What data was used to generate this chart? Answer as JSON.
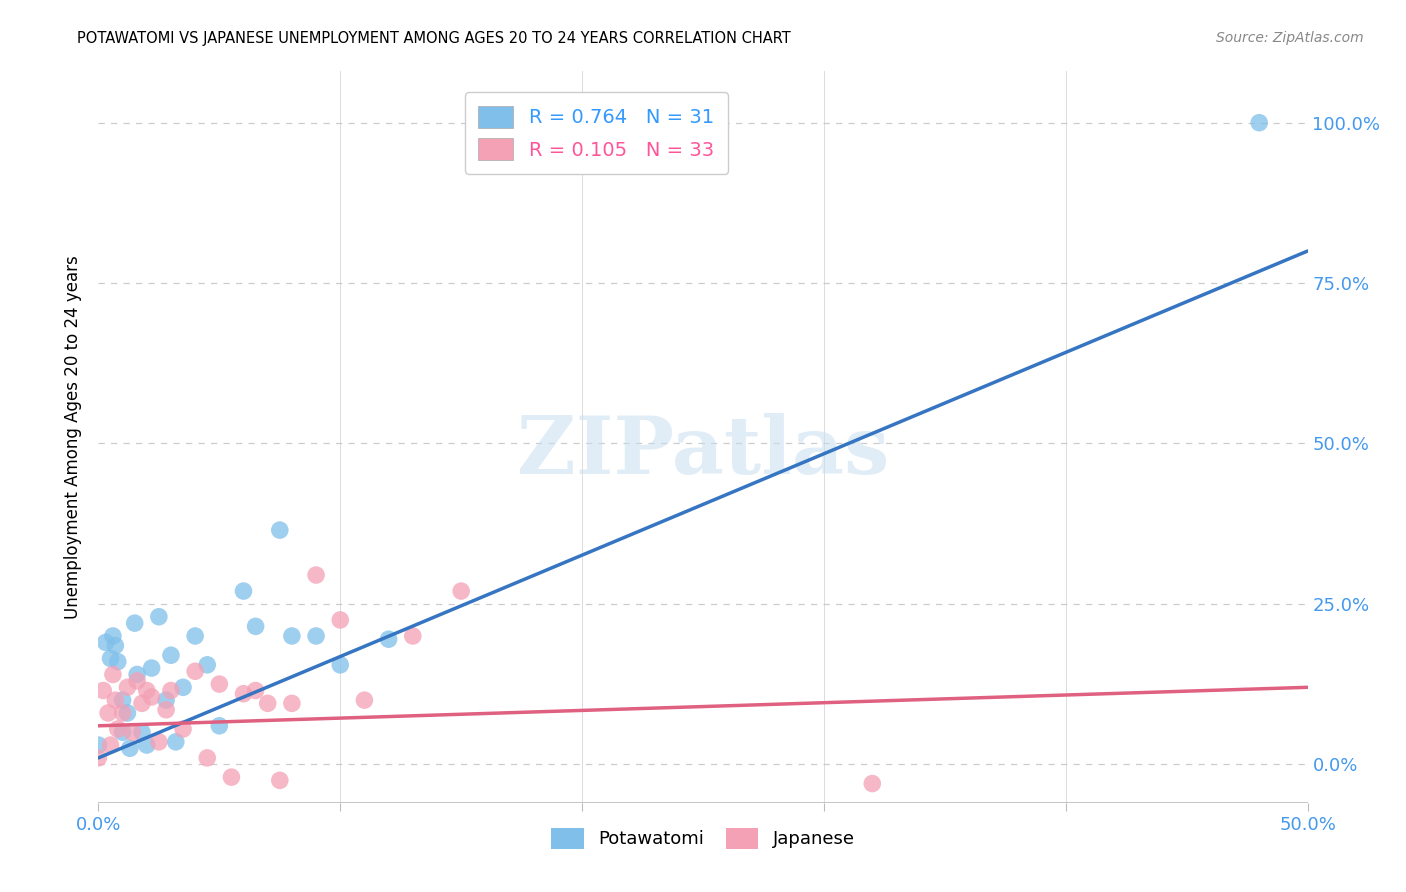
{
  "title": "POTAWATOMI VS JAPANESE UNEMPLOYMENT AMONG AGES 20 TO 24 YEARS CORRELATION CHART",
  "source": "Source: ZipAtlas.com",
  "ylabel": "Unemployment Among Ages 20 to 24 years",
  "xlim": [
    0.0,
    0.5
  ],
  "ylim": [
    -0.06,
    1.08
  ],
  "xticks": [
    0.0,
    0.1,
    0.2,
    0.3,
    0.4,
    0.5
  ],
  "xtick_labels_show": [
    "0.0%",
    "",
    "",
    "",
    "",
    "50.0%"
  ],
  "yticks_right": [
    0.0,
    0.25,
    0.5,
    0.75,
    1.0
  ],
  "ytick_labels_right": [
    "0.0%",
    "25.0%",
    "50.0%",
    "75.0%",
    "100.0%"
  ],
  "blue_color": "#7fbfea",
  "pink_color": "#f4a0b5",
  "blue_line_color": "#3575c2",
  "pink_line_color": "#e06080",
  "legend_blue_label": "R = 0.764   N = 31",
  "legend_pink_label": "R = 0.105   N = 33",
  "watermark_text": "ZIPatlas",
  "potawatomi_x": [
    0.0,
    0.003,
    0.005,
    0.006,
    0.007,
    0.008,
    0.01,
    0.01,
    0.012,
    0.013,
    0.015,
    0.016,
    0.018,
    0.02,
    0.022,
    0.025,
    0.028,
    0.03,
    0.032,
    0.035,
    0.04,
    0.045,
    0.05,
    0.06,
    0.065,
    0.075,
    0.08,
    0.09,
    0.1,
    0.12,
    0.48
  ],
  "potawatomi_y": [
    0.03,
    0.19,
    0.165,
    0.2,
    0.185,
    0.16,
    0.1,
    0.05,
    0.08,
    0.025,
    0.22,
    0.14,
    0.05,
    0.03,
    0.15,
    0.23,
    0.1,
    0.17,
    0.035,
    0.12,
    0.2,
    0.155,
    0.06,
    0.27,
    0.215,
    0.365,
    0.2,
    0.2,
    0.155,
    0.195,
    1.0
  ],
  "japanese_x": [
    0.0,
    0.002,
    0.004,
    0.005,
    0.006,
    0.007,
    0.008,
    0.01,
    0.012,
    0.014,
    0.016,
    0.018,
    0.02,
    0.022,
    0.025,
    0.028,
    0.03,
    0.035,
    0.04,
    0.045,
    0.05,
    0.055,
    0.06,
    0.065,
    0.07,
    0.075,
    0.08,
    0.09,
    0.1,
    0.11,
    0.13,
    0.15,
    0.32
  ],
  "japanese_y": [
    0.01,
    0.115,
    0.08,
    0.03,
    0.14,
    0.1,
    0.055,
    0.08,
    0.12,
    0.05,
    0.13,
    0.095,
    0.115,
    0.105,
    0.035,
    0.085,
    0.115,
    0.055,
    0.145,
    0.01,
    0.125,
    -0.02,
    0.11,
    0.115,
    0.095,
    -0.025,
    0.095,
    0.295,
    0.225,
    0.1,
    0.2,
    0.27,
    -0.03
  ],
  "blue_trend_x": [
    0.0,
    0.5
  ],
  "blue_trend_y": [
    0.01,
    0.8
  ],
  "pink_trend_x": [
    0.0,
    0.5
  ],
  "pink_trend_y": [
    0.06,
    0.12
  ],
  "grid_color": "#cccccc",
  "tick_color": "#4499ee",
  "axis_line_color": "#bbbbbb"
}
